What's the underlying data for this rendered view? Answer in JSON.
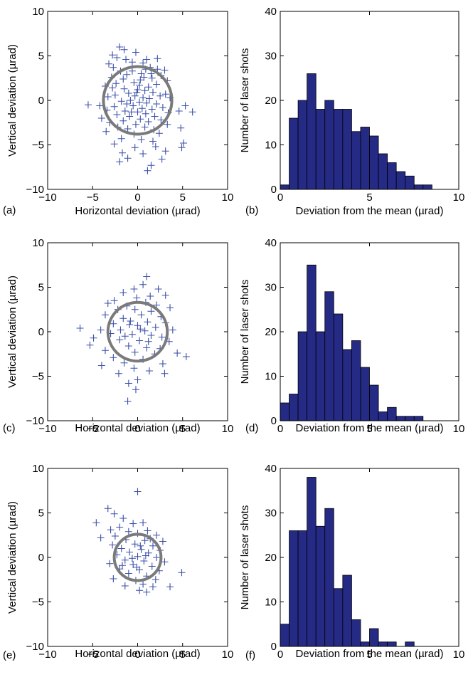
{
  "chart_data": [
    {
      "panel_label": "(a)",
      "type": "scatter",
      "xlabel": "Horizontal deviation (µrad)",
      "ylabel": "Vertical deviation (µrad)",
      "xlim": [
        -10,
        10
      ],
      "ylim": [
        -10,
        10
      ],
      "xticks": [
        "−10",
        "−5",
        "0",
        "5",
        "10"
      ],
      "yticks": [
        "−10",
        "−5",
        "0",
        "5",
        "10"
      ],
      "grid": false,
      "circle": {
        "cx": 0,
        "cy": 0,
        "r": 3.8
      },
      "points": [
        [
          -2.0,
          6.0
        ],
        [
          -1.5,
          5.7
        ],
        [
          -0.2,
          5.4
        ],
        [
          -2.8,
          5.1
        ],
        [
          -2.3,
          4.8
        ],
        [
          1.0,
          4.6
        ],
        [
          2.2,
          4.7
        ],
        [
          -1.3,
          4.6
        ],
        [
          0.6,
          4.2
        ],
        [
          -3.2,
          4.1
        ],
        [
          -2.7,
          3.7
        ],
        [
          0.9,
          3.5
        ],
        [
          1.4,
          3.7
        ],
        [
          3.0,
          3.4
        ],
        [
          -1.9,
          3.3
        ],
        [
          2.2,
          3.5
        ],
        [
          -0.6,
          3.3
        ],
        [
          -1.2,
          2.9
        ],
        [
          0.7,
          2.6
        ],
        [
          2.6,
          2.8
        ],
        [
          -2.9,
          2.6
        ],
        [
          -1.6,
          2.4
        ],
        [
          0.3,
          2.3
        ],
        [
          1.6,
          2.5
        ],
        [
          3.3,
          2.2
        ],
        [
          -2.4,
          1.9
        ],
        [
          -0.4,
          2.0
        ],
        [
          0.2,
          1.7
        ],
        [
          1.2,
          1.5
        ],
        [
          -3.6,
          1.6
        ],
        [
          -2.8,
          1.4
        ],
        [
          2.1,
          1.8
        ],
        [
          -1.5,
          1.3
        ],
        [
          0.0,
          1.2
        ],
        [
          0.8,
          1.1
        ],
        [
          -1.0,
          0.8
        ],
        [
          1.7,
          0.9
        ],
        [
          3.1,
          0.7
        ],
        [
          -2.5,
          0.6
        ],
        [
          -3.3,
          0.4
        ],
        [
          -0.3,
          0.5
        ],
        [
          0.6,
          0.3
        ],
        [
          1.3,
          0.2
        ],
        [
          2.5,
          0.5
        ],
        [
          3.6,
          0.3
        ],
        [
          -1.8,
          -0.1
        ],
        [
          -0.8,
          0.0
        ],
        [
          0.2,
          -0.2
        ],
        [
          1.0,
          -0.3
        ],
        [
          2.1,
          -0.4
        ],
        [
          -2.6,
          -0.7
        ],
        [
          -5.5,
          -0.5
        ],
        [
          -4.2,
          -0.6
        ],
        [
          -0.5,
          -0.6
        ],
        [
          0.5,
          -0.9
        ],
        [
          1.6,
          -1.0
        ],
        [
          2.8,
          -0.8
        ],
        [
          5.3,
          -0.6
        ],
        [
          -3.4,
          -1.1
        ],
        [
          -1.4,
          -1.2
        ],
        [
          0.0,
          -1.3
        ],
        [
          0.9,
          -1.5
        ],
        [
          3.4,
          -1.4
        ],
        [
          6.1,
          -1.3
        ],
        [
          4.6,
          -1.2
        ],
        [
          -2.3,
          -1.6
        ],
        [
          -0.9,
          -1.8
        ],
        [
          1.9,
          -1.8
        ],
        [
          -4.0,
          -2.0
        ],
        [
          -1.6,
          -2.3
        ],
        [
          0.3,
          -2.1
        ],
        [
          1.2,
          -2.4
        ],
        [
          2.6,
          -2.2
        ],
        [
          -3.1,
          -2.5
        ],
        [
          -0.2,
          -2.7
        ],
        [
          3.3,
          -2.7
        ],
        [
          -2.2,
          -3.0
        ],
        [
          -1.1,
          -3.2
        ],
        [
          0.8,
          -3.0
        ],
        [
          1.8,
          -3.3
        ],
        [
          4.8,
          -3.1
        ],
        [
          -3.5,
          -3.5
        ],
        [
          -0.4,
          -3.8
        ],
        [
          2.4,
          -3.7
        ],
        [
          -1.8,
          -4.3
        ],
        [
          0.4,
          -4.4
        ],
        [
          1.7,
          -4.6
        ],
        [
          5.1,
          -4.8
        ],
        [
          -2.6,
          -4.9
        ],
        [
          -0.3,
          -5.3
        ],
        [
          2.0,
          -5.2
        ],
        [
          4.9,
          -5.3
        ],
        [
          -1.7,
          -5.9
        ],
        [
          0.6,
          -6.0
        ],
        [
          3.1,
          -5.7
        ],
        [
          -1.1,
          -6.5
        ],
        [
          2.7,
          -6.6
        ],
        [
          -2.0,
          -6.9
        ],
        [
          1.5,
          -7.3
        ],
        [
          1.1,
          -7.9
        ],
        [
          -0.7,
          -1.3
        ],
        [
          -0.1,
          0.9
        ],
        [
          0.4,
          3.0
        ],
        [
          -1.2,
          -0.4
        ],
        [
          1.5,
          3.0
        ],
        [
          -0.6,
          4.3
        ]
      ]
    },
    {
      "panel_label": "(b)",
      "type": "bar",
      "xlabel": "Deviation from the mean (µrad)",
      "ylabel": "Number of laser shots",
      "xlim": [
        0,
        10
      ],
      "ylim": [
        0,
        40
      ],
      "xticks": [
        "0",
        "5",
        "10"
      ],
      "yticks": [
        "0",
        "10",
        "20",
        "30",
        "40"
      ],
      "bin_width": 0.5,
      "bin_starts": [
        0,
        0.5,
        1,
        1.5,
        2,
        2.5,
        3,
        3.5,
        4,
        4.5,
        5,
        5.5,
        6,
        6.5,
        7,
        7.5,
        8
      ],
      "values": [
        1,
        16,
        20,
        26,
        18,
        20,
        18,
        18,
        13,
        14,
        12,
        8,
        6,
        4,
        3,
        1,
        1
      ]
    },
    {
      "panel_label": "(c)",
      "type": "scatter",
      "xlabel": "Horizontal deviation (µrad)",
      "ylabel": "Vertical deviation (µrad)",
      "xlim": [
        -10,
        10
      ],
      "ylim": [
        -10,
        10
      ],
      "xticks": [
        "−10",
        "−5",
        "0",
        "5",
        "10"
      ],
      "yticks": [
        "−10",
        "−5",
        "0",
        "5",
        "10"
      ],
      "grid": false,
      "circle": {
        "cx": 0,
        "cy": 0,
        "r": 3.3
      },
      "points": [
        [
          1.0,
          6.2
        ],
        [
          0.6,
          5.3
        ],
        [
          -0.4,
          4.8
        ],
        [
          2.3,
          4.8
        ],
        [
          -1.6,
          4.4
        ],
        [
          1.4,
          4.0
        ],
        [
          3.1,
          4.1
        ],
        [
          -0.1,
          3.8
        ],
        [
          -2.6,
          3.5
        ],
        [
          -3.3,
          3.2
        ],
        [
          0.9,
          3.3
        ],
        [
          2.1,
          3.0
        ],
        [
          -1.2,
          2.9
        ],
        [
          3.6,
          2.7
        ],
        [
          -2.2,
          2.5
        ],
        [
          -0.3,
          2.5
        ],
        [
          1.5,
          2.3
        ],
        [
          -3.6,
          1.9
        ],
        [
          0.4,
          1.9
        ],
        [
          2.6,
          1.7
        ],
        [
          -1.6,
          1.5
        ],
        [
          -0.8,
          1.2
        ],
        [
          1.1,
          1.1
        ],
        [
          3.1,
          1.0
        ],
        [
          -2.7,
          0.9
        ],
        [
          0.0,
          0.7
        ],
        [
          2.0,
          0.5
        ],
        [
          -6.4,
          0.4
        ],
        [
          -4.1,
          0.2
        ],
        [
          -1.9,
          0.2
        ],
        [
          0.8,
          0.1
        ],
        [
          3.9,
          0.2
        ],
        [
          -3.0,
          -0.2
        ],
        [
          -0.6,
          -0.3
        ],
        [
          1.5,
          -0.4
        ],
        [
          2.7,
          -0.6
        ],
        [
          -4.9,
          -0.7
        ],
        [
          -2.0,
          -0.9
        ],
        [
          0.2,
          -1.0
        ],
        [
          3.5,
          -1.1
        ],
        [
          -5.3,
          -1.5
        ],
        [
          -1.0,
          -1.6
        ],
        [
          1.0,
          -1.8
        ],
        [
          2.5,
          -1.9
        ],
        [
          -3.6,
          -2.1
        ],
        [
          -0.3,
          -2.3
        ],
        [
          1.9,
          -2.5
        ],
        [
          4.4,
          -2.4
        ],
        [
          5.4,
          -2.8
        ],
        [
          -2.7,
          -2.9
        ],
        [
          0.6,
          -3.1
        ],
        [
          -1.5,
          -3.5
        ],
        [
          2.8,
          -3.6
        ],
        [
          -4.0,
          -3.8
        ],
        [
          -0.4,
          -4.1
        ],
        [
          1.3,
          -4.4
        ],
        [
          -2.1,
          -4.7
        ],
        [
          3.0,
          -4.7
        ],
        [
          0.0,
          -5.4
        ],
        [
          -1.0,
          -5.8
        ],
        [
          -0.2,
          -6.5
        ],
        [
          -1.1,
          -7.8
        ],
        [
          0.3,
          0.3
        ],
        [
          -0.9,
          0.8
        ],
        [
          1.2,
          -1.1
        ],
        [
          -1.4,
          -0.5
        ]
      ]
    },
    {
      "panel_label": "(d)",
      "type": "bar",
      "xlabel": "Deviation from the mean (µrad)",
      "ylabel": "Number of laser shots",
      "xlim": [
        0,
        10
      ],
      "ylim": [
        0,
        40
      ],
      "xticks": [
        "0",
        "5",
        "10"
      ],
      "yticks": [
        "0",
        "10",
        "20",
        "30",
        "40"
      ],
      "bin_width": 0.5,
      "bin_starts": [
        0,
        0.5,
        1,
        1.5,
        2,
        2.5,
        3,
        3.5,
        4,
        4.5,
        5,
        5.5,
        6,
        6.5,
        7,
        7.5,
        8
      ],
      "values": [
        4,
        6,
        20,
        35,
        20,
        29,
        24,
        16,
        18,
        12,
        8,
        2,
        3,
        1,
        1,
        1,
        0
      ]
    },
    {
      "panel_label": "(e)",
      "type": "scatter",
      "xlabel": "Horizontal deviation (µrad)",
      "ylabel": "Vertical deviation (µrad)",
      "xlim": [
        -10,
        10
      ],
      "ylim": [
        -10,
        10
      ],
      "xticks": [
        "−10",
        "−5",
        "0",
        "5",
        "10"
      ],
      "yticks": [
        "−10",
        "−5",
        "0",
        "5",
        "10"
      ],
      "grid": false,
      "circle": {
        "cx": 0,
        "cy": 0,
        "r": 2.6
      },
      "points": [
        [
          0.0,
          7.4
        ],
        [
          -3.3,
          5.5
        ],
        [
          -2.6,
          4.9
        ],
        [
          -1.6,
          4.4
        ],
        [
          -4.6,
          3.9
        ],
        [
          -0.5,
          3.8
        ],
        [
          0.6,
          3.9
        ],
        [
          -2.0,
          3.4
        ],
        [
          -3.0,
          3.1
        ],
        [
          1.1,
          3.0
        ],
        [
          -1.0,
          2.9
        ],
        [
          0.0,
          2.7
        ],
        [
          -2.5,
          2.4
        ],
        [
          2.1,
          2.5
        ],
        [
          -4.1,
          2.2
        ],
        [
          -1.3,
          2.0
        ],
        [
          0.8,
          1.9
        ],
        [
          2.8,
          1.8
        ],
        [
          -0.3,
          1.5
        ],
        [
          -2.8,
          1.4
        ],
        [
          1.7,
          1.3
        ],
        [
          -1.8,
          1.0
        ],
        [
          0.4,
          0.9
        ],
        [
          2.5,
          0.8
        ],
        [
          -0.9,
          0.6
        ],
        [
          1.2,
          0.5
        ],
        [
          -2.3,
          0.3
        ],
        [
          0.0,
          0.1
        ],
        [
          2.1,
          0.0
        ],
        [
          -1.4,
          -0.3
        ],
        [
          0.7,
          -0.4
        ],
        [
          3.0,
          -0.5
        ],
        [
          -3.1,
          -0.7
        ],
        [
          -0.5,
          -0.8
        ],
        [
          1.6,
          -1.0
        ],
        [
          -2.0,
          -1.3
        ],
        [
          0.2,
          -1.4
        ],
        [
          2.4,
          -1.5
        ],
        [
          4.9,
          -1.7
        ],
        [
          -1.0,
          -1.8
        ],
        [
          1.0,
          -2.1
        ],
        [
          -2.7,
          -2.4
        ],
        [
          -0.2,
          -2.6
        ],
        [
          2.0,
          -2.5
        ],
        [
          0.6,
          -3.0
        ],
        [
          1.7,
          -3.3
        ],
        [
          -1.4,
          -3.2
        ],
        [
          3.6,
          -3.3
        ],
        [
          0.2,
          -3.7
        ],
        [
          1.0,
          -3.9
        ],
        [
          -0.6,
          -0.1
        ],
        [
          0.3,
          1.3
        ],
        [
          -0.1,
          -1.1
        ],
        [
          1.4,
          2.1
        ],
        [
          -1.7,
          -0.9
        ],
        [
          0.9,
          0.2
        ]
      ]
    },
    {
      "panel_label": "(f)",
      "type": "bar",
      "xlabel": "Deviation from the mean (µrad)",
      "ylabel": "Number of laser shots",
      "xlim": [
        0,
        10
      ],
      "ylim": [
        0,
        40
      ],
      "xticks": [
        "0",
        "5",
        "10"
      ],
      "yticks": [
        "0",
        "10",
        "20",
        "30",
        "40"
      ],
      "bin_width": 0.5,
      "bin_starts": [
        0,
        0.5,
        1,
        1.5,
        2,
        2.5,
        3,
        3.5,
        4,
        4.5,
        5,
        5.5,
        6,
        6.5,
        7,
        7.5,
        8
      ],
      "values": [
        5,
        26,
        26,
        38,
        27,
        31,
        13,
        16,
        6,
        1,
        4,
        1,
        1,
        0,
        1,
        0,
        0
      ]
    }
  ],
  "colors": {
    "marker": "#3a4fa8",
    "bar_fill": "#252a85",
    "circle": "#7a7a7a",
    "axis": "#000000"
  }
}
